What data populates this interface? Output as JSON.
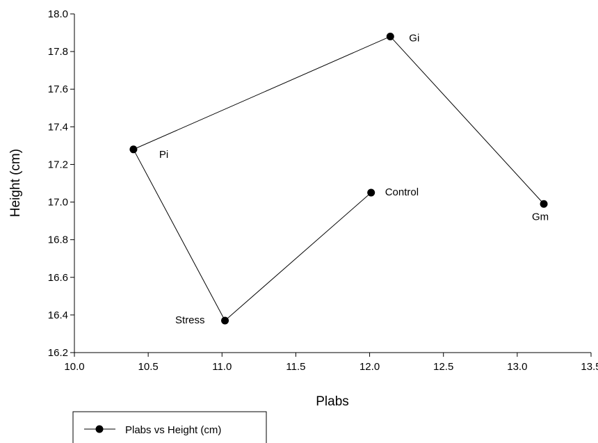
{
  "chart_data": {
    "type": "line",
    "title": "",
    "xlabel": "Plabs",
    "ylabel": "Height (cm)",
    "xlim": [
      10.0,
      13.5
    ],
    "ylim": [
      16.2,
      18.0
    ],
    "xticks": [
      "10.0",
      "10.5",
      "11.0",
      "11.5",
      "12.0",
      "12.5",
      "13.0",
      "13.5"
    ],
    "yticks": [
      "16.2",
      "16.4",
      "16.6",
      "16.8",
      "17.0",
      "17.2",
      "17.4",
      "17.6",
      "17.8",
      "18.0"
    ],
    "grid": false,
    "legend_position": "bottom-left",
    "series": [
      {
        "name": "Plabs vs Height (cm)",
        "color": "#000000",
        "marker": "filled-circle",
        "points": [
          {
            "label": "Control",
            "x": 12.01,
            "y": 17.05
          },
          {
            "label": "Stress",
            "x": 11.02,
            "y": 16.37
          },
          {
            "label": "Pi",
            "x": 10.4,
            "y": 17.28
          },
          {
            "label": "Gi",
            "x": 12.14,
            "y": 17.88
          },
          {
            "label": "Gm",
            "x": 13.18,
            "y": 16.99
          }
        ]
      }
    ]
  }
}
